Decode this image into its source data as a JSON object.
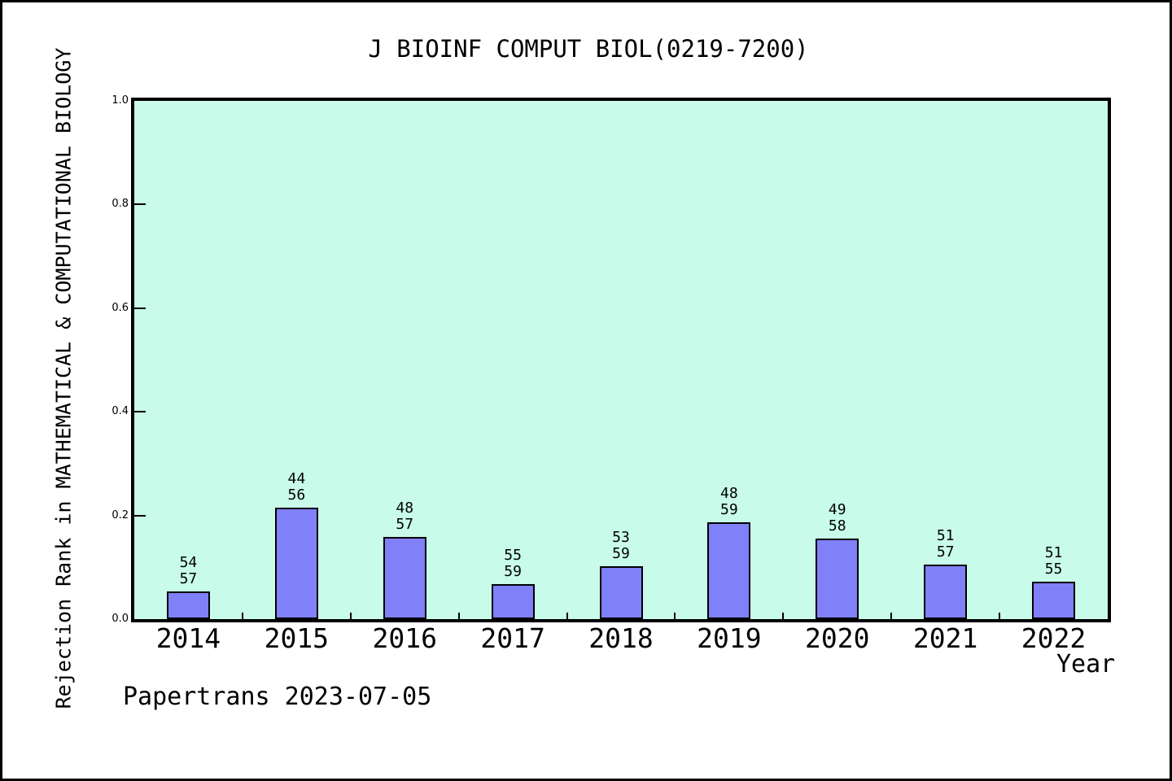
{
  "figure": {
    "title": "J BIOINF COMPUT BIOL(0219-7200)",
    "watermark": "Papertrans 2023-07-05"
  },
  "chart_data": {
    "type": "bar",
    "title": "J BIOINF COMPUT BIOL(0219-7200)",
    "xlabel": "Year",
    "ylabel": "Rejection Rank in MATHEMATICAL & COMPUTATIONAL BIOLOGY",
    "ylim": [
      0.0,
      1.0
    ],
    "yticks": [
      0.0,
      0.2,
      0.4,
      0.6,
      0.8,
      1.0
    ],
    "grid": false,
    "legend": false,
    "categories": [
      "2014",
      "2015",
      "2016",
      "2017",
      "2018",
      "2019",
      "2020",
      "2021",
      "2022"
    ],
    "points": [
      {
        "year": "2014",
        "rank": 54,
        "total": 57,
        "value": 0.0526
      },
      {
        "year": "2015",
        "rank": 44,
        "total": 56,
        "value": 0.2143
      },
      {
        "year": "2016",
        "rank": 48,
        "total": 57,
        "value": 0.1579
      },
      {
        "year": "2017",
        "rank": 55,
        "total": 59,
        "value": 0.0678
      },
      {
        "year": "2018",
        "rank": 53,
        "total": 59,
        "value": 0.1017
      },
      {
        "year": "2019",
        "rank": 48,
        "total": 59,
        "value": 0.1864
      },
      {
        "year": "2020",
        "rank": 49,
        "total": 58,
        "value": 0.1552
      },
      {
        "year": "2021",
        "rank": 51,
        "total": 57,
        "value": 0.1053
      },
      {
        "year": "2022",
        "rank": 51,
        "total": 55,
        "value": 0.0727
      }
    ],
    "bar_label_format": "rank above total",
    "colors": {
      "bar_fill": "#8080f8",
      "bar_edge": "#000000",
      "plot_background": "#c8fbea",
      "figure_background": "#ffffff",
      "frame": "#000000",
      "text": "#000000"
    }
  }
}
